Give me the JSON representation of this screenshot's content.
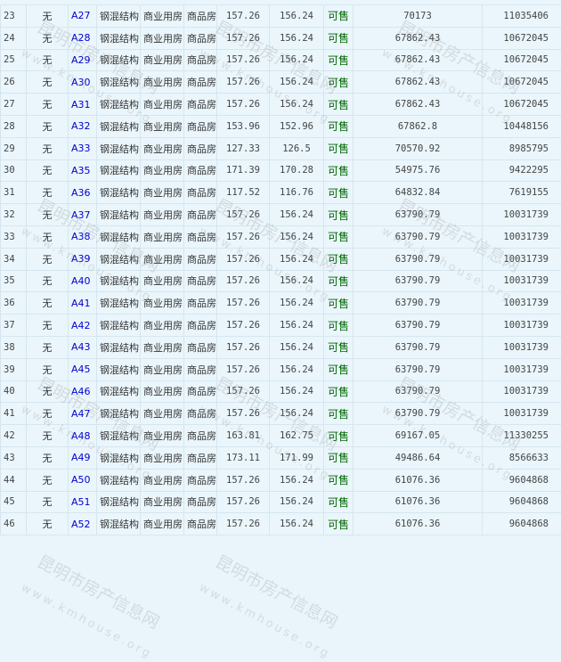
{
  "watermark": {
    "name": "昆明市房产信息网",
    "url": "www.kmhouse.org"
  },
  "colors": {
    "background": "#eaf6fc",
    "link": "#0000cc",
    "status": "#006600"
  },
  "rows": [
    {
      "no": "23",
      "floor": "无",
      "unit": "A27",
      "structure": "钢混结构",
      "use": "商业用房",
      "type": "商品房",
      "build_area": "157.26",
      "inner_area": "156.24",
      "status": "可售",
      "price": "70173",
      "total": "11035406"
    },
    {
      "no": "24",
      "floor": "无",
      "unit": "A28",
      "structure": "钢混结构",
      "use": "商业用房",
      "type": "商品房",
      "build_area": "157.26",
      "inner_area": "156.24",
      "status": "可售",
      "price": "67862.43",
      "total": "10672045"
    },
    {
      "no": "25",
      "floor": "无",
      "unit": "A29",
      "structure": "钢混结构",
      "use": "商业用房",
      "type": "商品房",
      "build_area": "157.26",
      "inner_area": "156.24",
      "status": "可售",
      "price": "67862.43",
      "total": "10672045"
    },
    {
      "no": "26",
      "floor": "无",
      "unit": "A30",
      "structure": "钢混结构",
      "use": "商业用房",
      "type": "商品房",
      "build_area": "157.26",
      "inner_area": "156.24",
      "status": "可售",
      "price": "67862.43",
      "total": "10672045"
    },
    {
      "no": "27",
      "floor": "无",
      "unit": "A31",
      "structure": "钢混结构",
      "use": "商业用房",
      "type": "商品房",
      "build_area": "157.26",
      "inner_area": "156.24",
      "status": "可售",
      "price": "67862.43",
      "total": "10672045"
    },
    {
      "no": "28",
      "floor": "无",
      "unit": "A32",
      "structure": "钢混结构",
      "use": "商业用房",
      "type": "商品房",
      "build_area": "153.96",
      "inner_area": "152.96",
      "status": "可售",
      "price": "67862.8",
      "total": "10448156"
    },
    {
      "no": "29",
      "floor": "无",
      "unit": "A33",
      "structure": "钢混结构",
      "use": "商业用房",
      "type": "商品房",
      "build_area": "127.33",
      "inner_area": "126.5",
      "status": "可售",
      "price": "70570.92",
      "total": "8985795"
    },
    {
      "no": "30",
      "floor": "无",
      "unit": "A35",
      "structure": "钢混结构",
      "use": "商业用房",
      "type": "商品房",
      "build_area": "171.39",
      "inner_area": "170.28",
      "status": "可售",
      "price": "54975.76",
      "total": "9422295"
    },
    {
      "no": "31",
      "floor": "无",
      "unit": "A36",
      "structure": "钢混结构",
      "use": "商业用房",
      "type": "商品房",
      "build_area": "117.52",
      "inner_area": "116.76",
      "status": "可售",
      "price": "64832.84",
      "total": "7619155"
    },
    {
      "no": "32",
      "floor": "无",
      "unit": "A37",
      "structure": "钢混结构",
      "use": "商业用房",
      "type": "商品房",
      "build_area": "157.26",
      "inner_area": "156.24",
      "status": "可售",
      "price": "63790.79",
      "total": "10031739"
    },
    {
      "no": "33",
      "floor": "无",
      "unit": "A38",
      "structure": "钢混结构",
      "use": "商业用房",
      "type": "商品房",
      "build_area": "157.26",
      "inner_area": "156.24",
      "status": "可售",
      "price": "63790.79",
      "total": "10031739"
    },
    {
      "no": "34",
      "floor": "无",
      "unit": "A39",
      "structure": "钢混结构",
      "use": "商业用房",
      "type": "商品房",
      "build_area": "157.26",
      "inner_area": "156.24",
      "status": "可售",
      "price": "63790.79",
      "total": "10031739"
    },
    {
      "no": "35",
      "floor": "无",
      "unit": "A40",
      "structure": "钢混结构",
      "use": "商业用房",
      "type": "商品房",
      "build_area": "157.26",
      "inner_area": "156.24",
      "status": "可售",
      "price": "63790.79",
      "total": "10031739"
    },
    {
      "no": "36",
      "floor": "无",
      "unit": "A41",
      "structure": "钢混结构",
      "use": "商业用房",
      "type": "商品房",
      "build_area": "157.26",
      "inner_area": "156.24",
      "status": "可售",
      "price": "63790.79",
      "total": "10031739"
    },
    {
      "no": "37",
      "floor": "无",
      "unit": "A42",
      "structure": "钢混结构",
      "use": "商业用房",
      "type": "商品房",
      "build_area": "157.26",
      "inner_area": "156.24",
      "status": "可售",
      "price": "63790.79",
      "total": "10031739"
    },
    {
      "no": "38",
      "floor": "无",
      "unit": "A43",
      "structure": "钢混结构",
      "use": "商业用房",
      "type": "商品房",
      "build_area": "157.26",
      "inner_area": "156.24",
      "status": "可售",
      "price": "63790.79",
      "total": "10031739"
    },
    {
      "no": "39",
      "floor": "无",
      "unit": "A45",
      "structure": "钢混结构",
      "use": "商业用房",
      "type": "商品房",
      "build_area": "157.26",
      "inner_area": "156.24",
      "status": "可售",
      "price": "63790.79",
      "total": "10031739"
    },
    {
      "no": "40",
      "floor": "无",
      "unit": "A46",
      "structure": "钢混结构",
      "use": "商业用房",
      "type": "商品房",
      "build_area": "157.26",
      "inner_area": "156.24",
      "status": "可售",
      "price": "63790.79",
      "total": "10031739"
    },
    {
      "no": "41",
      "floor": "无",
      "unit": "A47",
      "structure": "钢混结构",
      "use": "商业用房",
      "type": "商品房",
      "build_area": "157.26",
      "inner_area": "156.24",
      "status": "可售",
      "price": "63790.79",
      "total": "10031739"
    },
    {
      "no": "42",
      "floor": "无",
      "unit": "A48",
      "structure": "钢混结构",
      "use": "商业用房",
      "type": "商品房",
      "build_area": "163.81",
      "inner_area": "162.75",
      "status": "可售",
      "price": "69167.05",
      "total": "11330255"
    },
    {
      "no": "43",
      "floor": "无",
      "unit": "A49",
      "structure": "钢混结构",
      "use": "商业用房",
      "type": "商品房",
      "build_area": "173.11",
      "inner_area": "171.99",
      "status": "可售",
      "price": "49486.64",
      "total": "8566633"
    },
    {
      "no": "44",
      "floor": "无",
      "unit": "A50",
      "structure": "钢混结构",
      "use": "商业用房",
      "type": "商品房",
      "build_area": "157.26",
      "inner_area": "156.24",
      "status": "可售",
      "price": "61076.36",
      "total": "9604868"
    },
    {
      "no": "45",
      "floor": "无",
      "unit": "A51",
      "structure": "钢混结构",
      "use": "商业用房",
      "type": "商品房",
      "build_area": "157.26",
      "inner_area": "156.24",
      "status": "可售",
      "price": "61076.36",
      "total": "9604868"
    },
    {
      "no": "46",
      "floor": "无",
      "unit": "A52",
      "structure": "钢混结构",
      "use": "商业用房",
      "type": "商品房",
      "build_area": "157.26",
      "inner_area": "156.24",
      "status": "可售",
      "price": "61076.36",
      "total": "9604868"
    }
  ]
}
